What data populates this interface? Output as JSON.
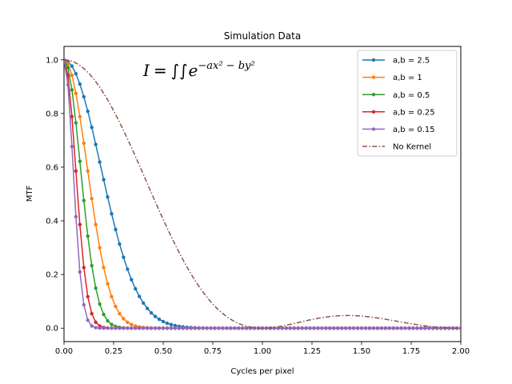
{
  "chart_data": {
    "type": "line",
    "title": "Simulation Data",
    "xlabel": "Cycles per pixel",
    "ylabel": "MTF",
    "xlim": [
      0,
      2.0
    ],
    "ylim": [
      -0.05,
      1.05
    ],
    "xticks": [
      "0.00",
      "0.25",
      "0.50",
      "0.75",
      "1.00",
      "1.25",
      "1.50",
      "1.75",
      "2.00"
    ],
    "yticks": [
      "0.0",
      "0.2",
      "0.4",
      "0.6",
      "0.8",
      "1.0"
    ],
    "grid": false,
    "legend_position": "upper-right",
    "annotation": {
      "lhs": "I",
      "eq": "=",
      "integral": "∫∫",
      "base": "e",
      "exponent": "−ax² − by²"
    },
    "series": [
      {
        "name": "a,b = 2.5",
        "color": "#1f77b4",
        "style": "solid-markers",
        "falloff": 0.26
      },
      {
        "name": "a,b = 1",
        "color": "#ff7f0e",
        "style": "solid-markers",
        "falloff": 0.164
      },
      {
        "name": "a,b = 0.5",
        "color": "#2ca02c",
        "style": "solid-markers",
        "falloff": 0.116
      },
      {
        "name": "a,b = 0.25",
        "color": "#d62728",
        "style": "solid-markers",
        "falloff": 0.082
      },
      {
        "name": "a,b = 0.15",
        "color": "#9467bd",
        "style": "solid-markers",
        "falloff": 0.064
      },
      {
        "name": "No Kernel",
        "color": "#8c564b",
        "style": "dashdot",
        "falloff": null
      }
    ]
  }
}
